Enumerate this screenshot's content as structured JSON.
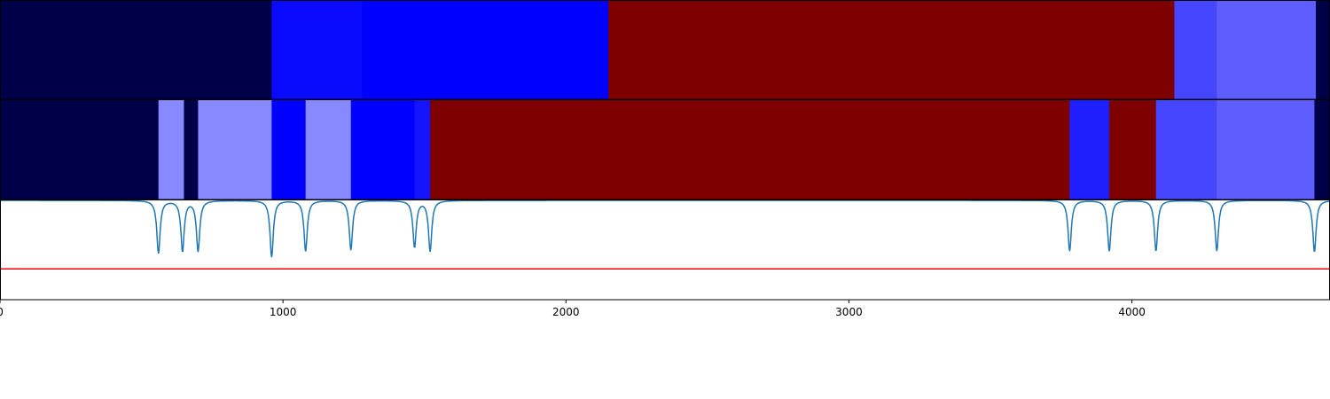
{
  "chart_data": [
    {
      "type": "heatmap",
      "title": "",
      "xlabel": "",
      "ylabel": "",
      "xlim": [
        0,
        4700
      ],
      "segments": [
        {
          "start": 0,
          "end": 960,
          "color": "#000048"
        },
        {
          "start": 960,
          "end": 1280,
          "color": "#0a0aff"
        },
        {
          "start": 1280,
          "end": 2150,
          "color": "#0000ff"
        },
        {
          "start": 2150,
          "end": 4150,
          "color": "#7f0000"
        },
        {
          "start": 4150,
          "end": 4300,
          "color": "#4646ff"
        },
        {
          "start": 4300,
          "end": 4650,
          "color": "#5e5eff"
        },
        {
          "start": 4650,
          "end": 4700,
          "color": "#000048"
        }
      ]
    },
    {
      "type": "heatmap",
      "title": "",
      "xlabel": "",
      "ylabel": "",
      "xlim": [
        0,
        4700
      ],
      "segments": [
        {
          "start": 0,
          "end": 560,
          "color": "#000048"
        },
        {
          "start": 560,
          "end": 650,
          "color": "#8888ff"
        },
        {
          "start": 650,
          "end": 700,
          "color": "#000048"
        },
        {
          "start": 700,
          "end": 960,
          "color": "#8888ff"
        },
        {
          "start": 960,
          "end": 1080,
          "color": "#0000ff"
        },
        {
          "start": 1080,
          "end": 1240,
          "color": "#8888ff"
        },
        {
          "start": 1240,
          "end": 1465,
          "color": "#0000ff"
        },
        {
          "start": 1465,
          "end": 1520,
          "color": "#1414ff"
        },
        {
          "start": 1520,
          "end": 3780,
          "color": "#7f0000"
        },
        {
          "start": 3780,
          "end": 3920,
          "color": "#1e1eff"
        },
        {
          "start": 3920,
          "end": 4085,
          "color": "#7f0000"
        },
        {
          "start": 4085,
          "end": 4300,
          "color": "#4646ff"
        },
        {
          "start": 4300,
          "end": 4645,
          "color": "#5e5eff"
        },
        {
          "start": 4645,
          "end": 4700,
          "color": "#000048"
        }
      ]
    },
    {
      "type": "line",
      "title": "",
      "xlabel": "",
      "ylabel": "",
      "xlim": [
        0,
        4700
      ],
      "ylim": [
        0,
        1
      ],
      "x_ticks": [
        "0",
        "1000",
        "2000",
        "3000",
        "4000"
      ],
      "series": [
        {
          "color": "#1f77b4",
          "baseline": 1.0,
          "dips": [
            {
              "x": 560,
              "y": 0.47
            },
            {
              "x": 645,
              "y": 0.49
            },
            {
              "x": 700,
              "y": 0.49
            },
            {
              "x": 960,
              "y": 0.43
            },
            {
              "x": 1080,
              "y": 0.49
            },
            {
              "x": 1240,
              "y": 0.5
            },
            {
              "x": 1465,
              "y": 0.53
            },
            {
              "x": 1520,
              "y": 0.49
            },
            {
              "x": 3780,
              "y": 0.49
            },
            {
              "x": 3920,
              "y": 0.49
            },
            {
              "x": 4085,
              "y": 0.49
            },
            {
              "x": 4300,
              "y": 0.49
            },
            {
              "x": 4645,
              "y": 0.48
            }
          ]
        },
        {
          "color": "#ff0000",
          "constant": 0.31
        }
      ]
    }
  ]
}
